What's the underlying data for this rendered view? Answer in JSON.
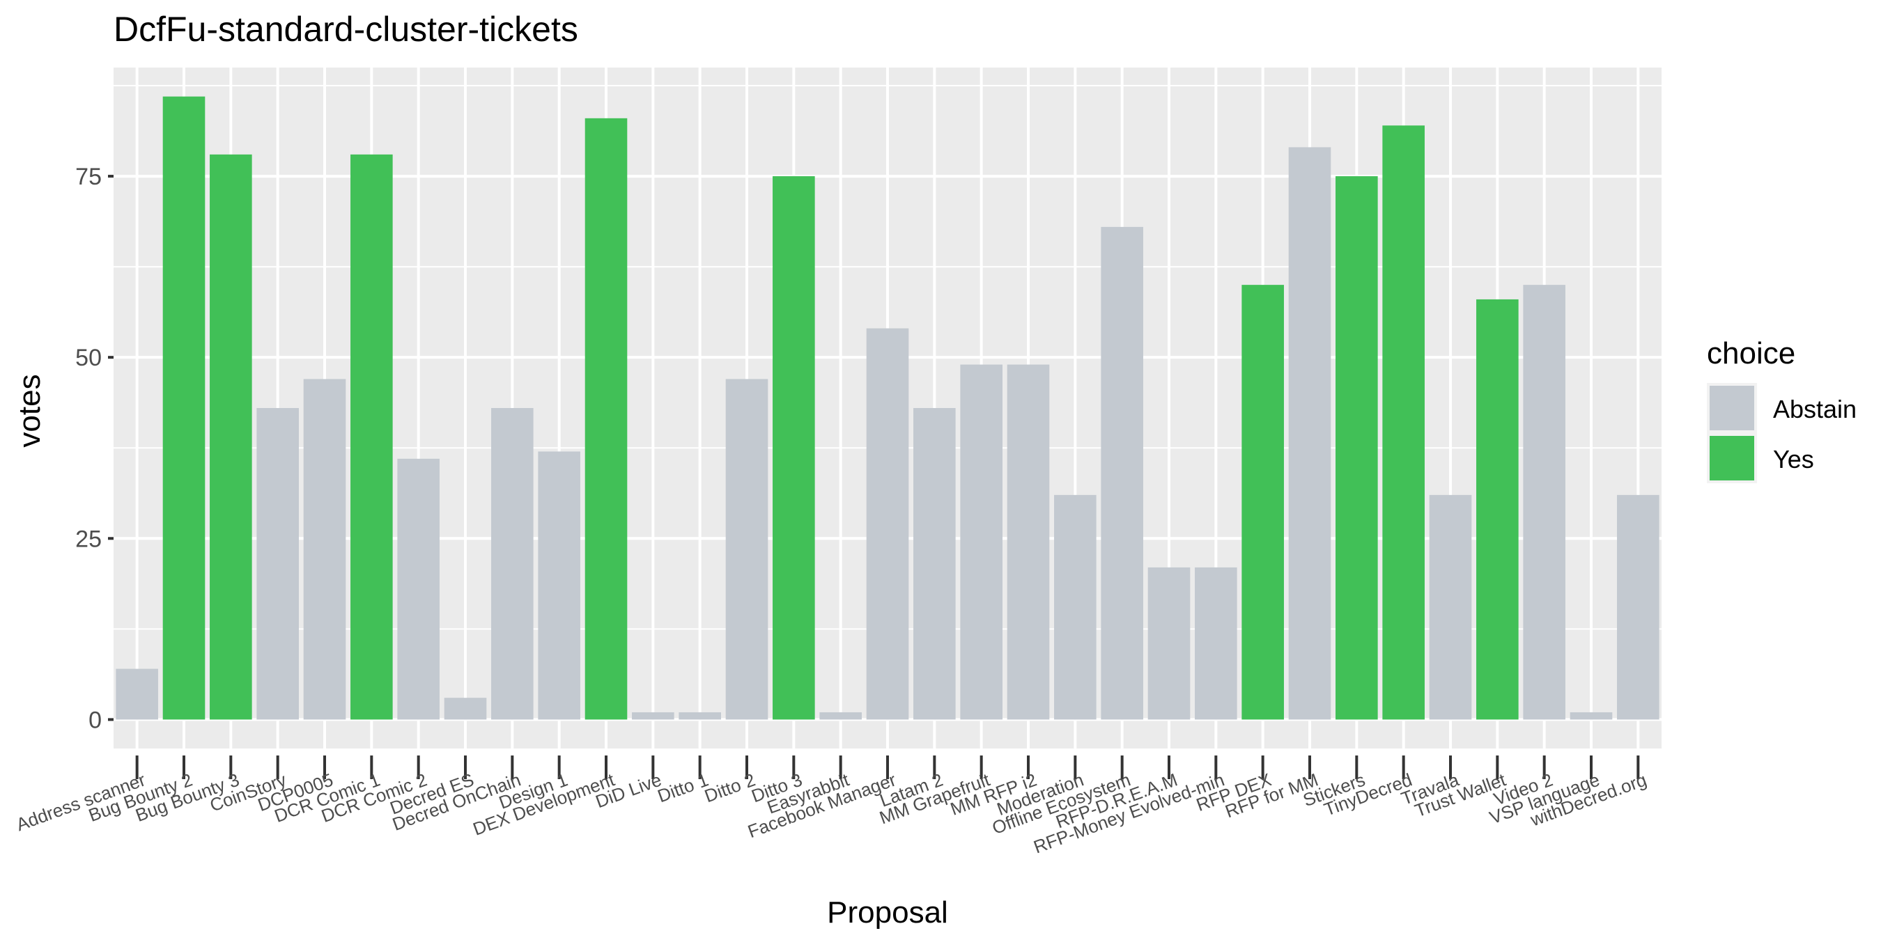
{
  "chart_data": {
    "type": "bar",
    "title": "DcfFu-standard-cluster-tickets",
    "xlabel": "Proposal",
    "ylabel": "votes",
    "ylim": [
      -4,
      90
    ],
    "yticks": [
      0,
      25,
      50,
      75
    ],
    "grid": true,
    "legend": {
      "title": "choice",
      "position": "right",
      "entries": [
        {
          "label": "Abstain",
          "color": "#c3c9d0"
        },
        {
          "label": "Yes",
          "color": "#41c057"
        }
      ]
    },
    "colors": {
      "panel_background": "#ebebeb",
      "grid": "#ffffff",
      "Abstain": "#c3c9d0",
      "Yes": "#41c057"
    },
    "categories": [
      "Address scanner",
      "Bug Bounty 2",
      "Bug Bounty 3",
      "CoinStory",
      "DCP0005",
      "DCR Comic 1",
      "DCR Comic 2",
      "Decred ES",
      "Decred OnChain",
      "Design 1",
      "DEX Development",
      "DiD Live",
      "Ditto 1",
      "Ditto 2",
      "Ditto 3",
      "Easyrabbit",
      "Facebook Manager",
      "Latam 2",
      "MM Grapefruit",
      "MM RFP i2",
      "Moderation",
      "Offline Ecosystem",
      "RFP-D.R.E.A.M",
      "RFP-Money Evolved-min",
      "RFP DEX",
      "RFP for MM",
      "Stickers",
      "TinyDecred",
      "Travala",
      "Trust Wallet",
      "Video 2",
      "VSP language",
      "withDecred.org"
    ],
    "values": [
      7,
      86,
      78,
      43,
      47,
      78,
      36,
      3,
      43,
      37,
      83,
      1,
      1,
      47,
      75,
      1,
      54,
      43,
      49,
      49,
      31,
      68,
      21,
      21,
      60,
      79,
      75,
      82,
      31,
      58,
      60,
      1,
      31
    ],
    "choice": [
      "Abstain",
      "Yes",
      "Yes",
      "Abstain",
      "Abstain",
      "Yes",
      "Abstain",
      "Abstain",
      "Abstain",
      "Abstain",
      "Yes",
      "Abstain",
      "Abstain",
      "Abstain",
      "Yes",
      "Abstain",
      "Abstain",
      "Abstain",
      "Abstain",
      "Abstain",
      "Abstain",
      "Abstain",
      "Abstain",
      "Abstain",
      "Yes",
      "Abstain",
      "Yes",
      "Yes",
      "Abstain",
      "Yes",
      "Abstain",
      "Abstain",
      "Abstain"
    ]
  }
}
